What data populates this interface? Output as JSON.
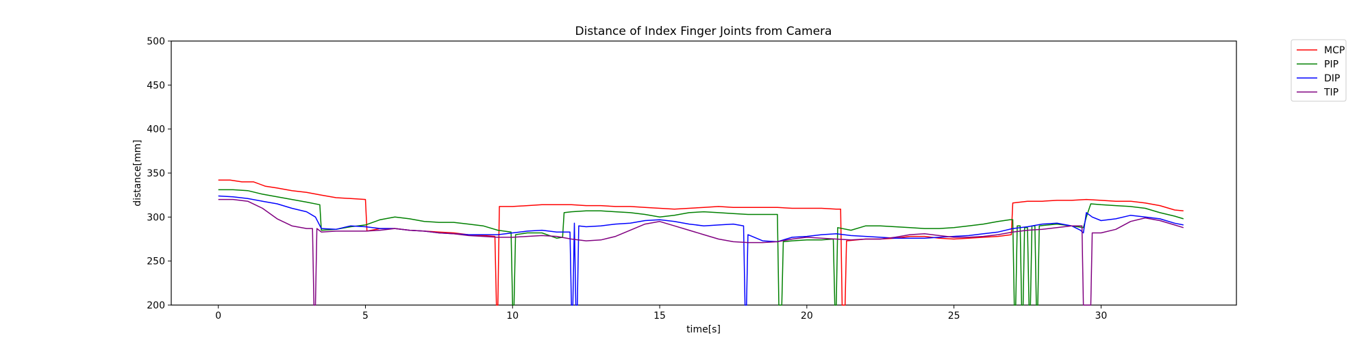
{
  "chart_data": {
    "type": "line",
    "title": "Distance of Index Finger Joints from Camera",
    "xlabel": "time[s]",
    "ylabel": "distance[mm]",
    "xlim": [
      -1.6,
      34.6
    ],
    "ylim": [
      200,
      500
    ],
    "xticks": [
      0,
      5,
      10,
      15,
      20,
      25,
      30
    ],
    "yticks": [
      200,
      250,
      300,
      350,
      400,
      450,
      500
    ],
    "grid": false,
    "legend_position": "outside-top-right",
    "series": [
      {
        "name": "MCP",
        "color": "#ff0000",
        "points": [
          [
            0,
            342
          ],
          [
            0.4,
            342
          ],
          [
            0.8,
            340
          ],
          [
            1.2,
            340
          ],
          [
            1.6,
            335
          ],
          [
            2,
            333
          ],
          [
            2.5,
            330
          ],
          [
            3,
            328
          ],
          [
            3.5,
            325
          ],
          [
            4,
            322
          ],
          [
            4.5,
            321
          ],
          [
            5,
            320
          ],
          [
            5.05,
            284
          ],
          [
            5.5,
            287
          ],
          [
            6,
            287
          ],
          [
            6.5,
            285
          ],
          [
            7,
            284
          ],
          [
            7.5,
            283
          ],
          [
            8,
            282
          ],
          [
            8.5,
            280
          ],
          [
            9,
            279
          ],
          [
            9.4,
            278
          ],
          [
            9.45,
            200
          ],
          [
            9.5,
            200
          ],
          [
            9.55,
            312
          ],
          [
            10,
            312
          ],
          [
            10.5,
            313
          ],
          [
            11,
            314
          ],
          [
            11.5,
            314
          ],
          [
            12,
            314
          ],
          [
            12.5,
            313
          ],
          [
            13,
            313
          ],
          [
            13.5,
            312
          ],
          [
            14,
            312
          ],
          [
            14.5,
            311
          ],
          [
            15,
            310
          ],
          [
            15.5,
            309
          ],
          [
            16,
            310
          ],
          [
            16.5,
            311
          ],
          [
            17,
            312
          ],
          [
            17.5,
            311
          ],
          [
            18,
            311
          ],
          [
            18.5,
            311
          ],
          [
            19,
            311
          ],
          [
            19.5,
            310
          ],
          [
            20,
            310
          ],
          [
            20.5,
            310
          ],
          [
            21,
            309
          ],
          [
            21.15,
            309
          ],
          [
            21.2,
            200
          ],
          [
            21.3,
            200
          ],
          [
            21.35,
            273
          ],
          [
            22,
            275
          ],
          [
            22.5,
            275
          ],
          [
            23,
            276
          ],
          [
            23.5,
            278
          ],
          [
            24,
            278
          ],
          [
            24.5,
            276
          ],
          [
            25,
            275
          ],
          [
            25.5,
            276
          ],
          [
            26,
            277
          ],
          [
            26.5,
            278
          ],
          [
            26.95,
            280
          ],
          [
            27,
            316
          ],
          [
            27.5,
            318
          ],
          [
            28,
            318
          ],
          [
            28.5,
            319
          ],
          [
            29,
            319
          ],
          [
            29.5,
            320
          ],
          [
            30,
            319
          ],
          [
            30.5,
            318
          ],
          [
            31,
            318
          ],
          [
            31.5,
            316
          ],
          [
            32,
            313
          ],
          [
            32.5,
            308
          ],
          [
            32.8,
            307
          ]
        ]
      },
      {
        "name": "PIP",
        "color": "#008000",
        "points": [
          [
            0,
            331
          ],
          [
            0.5,
            331
          ],
          [
            1,
            330
          ],
          [
            1.5,
            326
          ],
          [
            2,
            323
          ],
          [
            2.5,
            320
          ],
          [
            3,
            317
          ],
          [
            3.45,
            314
          ],
          [
            3.5,
            285
          ],
          [
            4,
            286
          ],
          [
            4.5,
            289
          ],
          [
            5,
            291
          ],
          [
            5.5,
            297
          ],
          [
            6,
            300
          ],
          [
            6.5,
            298
          ],
          [
            7,
            295
          ],
          [
            7.5,
            294
          ],
          [
            8,
            294
          ],
          [
            8.5,
            292
          ],
          [
            9,
            290
          ],
          [
            9.5,
            285
          ],
          [
            9.95,
            283
          ],
          [
            10,
            200
          ],
          [
            10.05,
            200
          ],
          [
            10.1,
            280
          ],
          [
            10.5,
            282
          ],
          [
            11,
            282
          ],
          [
            11.5,
            276
          ],
          [
            11.7,
            277
          ],
          [
            11.75,
            305
          ],
          [
            12,
            306
          ],
          [
            12.5,
            307
          ],
          [
            13,
            307
          ],
          [
            13.5,
            306
          ],
          [
            14,
            305
          ],
          [
            14.5,
            303
          ],
          [
            15,
            300
          ],
          [
            15.5,
            302
          ],
          [
            16,
            305
          ],
          [
            16.5,
            306
          ],
          [
            17,
            305
          ],
          [
            17.5,
            304
          ],
          [
            18,
            303
          ],
          [
            18.5,
            303
          ],
          [
            19,
            303
          ],
          [
            19.05,
            200
          ],
          [
            19.15,
            200
          ],
          [
            19.2,
            272
          ],
          [
            19.5,
            273
          ],
          [
            20,
            274
          ],
          [
            20.5,
            274
          ],
          [
            20.9,
            275
          ],
          [
            20.95,
            200
          ],
          [
            21.0,
            200
          ],
          [
            21.05,
            288
          ],
          [
            21.5,
            285
          ],
          [
            22,
            290
          ],
          [
            22.5,
            290
          ],
          [
            23,
            289
          ],
          [
            23.5,
            288
          ],
          [
            24,
            287
          ],
          [
            24.5,
            287
          ],
          [
            25,
            288
          ],
          [
            25.5,
            290
          ],
          [
            26,
            292
          ],
          [
            26.5,
            295
          ],
          [
            26.9,
            297
          ],
          [
            27.0,
            297
          ],
          [
            27.05,
            200
          ],
          [
            27.1,
            200
          ],
          [
            27.15,
            290
          ],
          [
            27.25,
            290
          ],
          [
            27.3,
            200
          ],
          [
            27.35,
            200
          ],
          [
            27.4,
            288
          ],
          [
            27.5,
            288
          ],
          [
            27.55,
            200
          ],
          [
            27.6,
            200
          ],
          [
            27.65,
            290
          ],
          [
            27.75,
            290
          ],
          [
            27.8,
            200
          ],
          [
            27.85,
            200
          ],
          [
            27.9,
            290
          ],
          [
            28.5,
            292
          ],
          [
            29,
            290
          ],
          [
            29.4,
            288
          ],
          [
            29.5,
            300
          ],
          [
            29.65,
            315
          ],
          [
            30,
            314
          ],
          [
            30.5,
            313
          ],
          [
            31,
            312
          ],
          [
            31.5,
            310
          ],
          [
            32,
            305
          ],
          [
            32.5,
            301
          ],
          [
            32.8,
            298
          ]
        ]
      },
      {
        "name": "DIP",
        "color": "#0000ff",
        "points": [
          [
            0,
            324
          ],
          [
            0.5,
            323
          ],
          [
            1,
            321
          ],
          [
            1.5,
            318
          ],
          [
            2,
            315
          ],
          [
            2.5,
            310
          ],
          [
            3,
            306
          ],
          [
            3.3,
            300
          ],
          [
            3.5,
            287
          ],
          [
            4,
            286
          ],
          [
            4.5,
            290
          ],
          [
            5,
            289
          ],
          [
            5.5,
            287
          ],
          [
            6,
            287
          ],
          [
            6.5,
            285
          ],
          [
            7,
            284
          ],
          [
            7.5,
            282
          ],
          [
            8,
            281
          ],
          [
            8.5,
            280
          ],
          [
            9,
            280
          ],
          [
            9.5,
            280
          ],
          [
            10,
            282
          ],
          [
            10.5,
            284
          ],
          [
            11,
            285
          ],
          [
            11.5,
            283
          ],
          [
            11.95,
            283
          ],
          [
            12.0,
            200
          ],
          [
            12.05,
            200
          ],
          [
            12.1,
            293
          ],
          [
            12.15,
            200
          ],
          [
            12.2,
            200
          ],
          [
            12.25,
            290
          ],
          [
            12.5,
            289
          ],
          [
            13,
            290
          ],
          [
            13.5,
            292
          ],
          [
            14,
            293
          ],
          [
            14.5,
            296
          ],
          [
            15,
            297
          ],
          [
            15.5,
            295
          ],
          [
            16,
            292
          ],
          [
            16.5,
            290
          ],
          [
            17,
            291
          ],
          [
            17.5,
            292
          ],
          [
            17.85,
            290
          ],
          [
            17.9,
            200
          ],
          [
            17.95,
            200
          ],
          [
            18.0,
            280
          ],
          [
            18.5,
            273
          ],
          [
            19,
            272
          ],
          [
            19.5,
            277
          ],
          [
            20,
            278
          ],
          [
            20.5,
            280
          ],
          [
            21,
            281
          ],
          [
            21.5,
            279
          ],
          [
            22,
            278
          ],
          [
            22.5,
            277
          ],
          [
            23,
            276
          ],
          [
            23.5,
            276
          ],
          [
            24,
            276
          ],
          [
            24.5,
            277
          ],
          [
            25,
            278
          ],
          [
            25.5,
            279
          ],
          [
            26,
            281
          ],
          [
            26.5,
            283
          ],
          [
            27,
            287
          ],
          [
            27.5,
            289
          ],
          [
            28,
            292
          ],
          [
            28.5,
            293
          ],
          [
            29,
            290
          ],
          [
            29.3,
            285
          ],
          [
            29.4,
            282
          ],
          [
            29.5,
            305
          ],
          [
            29.7,
            300
          ],
          [
            30,
            296
          ],
          [
            30.5,
            298
          ],
          [
            31,
            302
          ],
          [
            31.5,
            300
          ],
          [
            32,
            298
          ],
          [
            32.5,
            293
          ],
          [
            32.8,
            291
          ]
        ]
      },
      {
        "name": "TIP",
        "color": "#800080",
        "points": [
          [
            0,
            320
          ],
          [
            0.5,
            320
          ],
          [
            1,
            318
          ],
          [
            1.5,
            310
          ],
          [
            2,
            298
          ],
          [
            2.5,
            290
          ],
          [
            3,
            287
          ],
          [
            3.2,
            287
          ],
          [
            3.25,
            200
          ],
          [
            3.3,
            200
          ],
          [
            3.35,
            287
          ],
          [
            3.5,
            283
          ],
          [
            4,
            284
          ],
          [
            4.5,
            284
          ],
          [
            5,
            284
          ],
          [
            5.5,
            285
          ],
          [
            6,
            287
          ],
          [
            6.5,
            285
          ],
          [
            7,
            284
          ],
          [
            7.5,
            282
          ],
          [
            8,
            281
          ],
          [
            8.5,
            279
          ],
          [
            9,
            278
          ],
          [
            9.5,
            277
          ],
          [
            10,
            277
          ],
          [
            10.5,
            278
          ],
          [
            11,
            279
          ],
          [
            11.5,
            278
          ],
          [
            12,
            275
          ],
          [
            12.5,
            273
          ],
          [
            13,
            274
          ],
          [
            13.5,
            278
          ],
          [
            14,
            285
          ],
          [
            14.5,
            292
          ],
          [
            15,
            295
          ],
          [
            15.5,
            290
          ],
          [
            16,
            285
          ],
          [
            16.5,
            280
          ],
          [
            17,
            275
          ],
          [
            17.5,
            272
          ],
          [
            18,
            271
          ],
          [
            18.5,
            271
          ],
          [
            19,
            272
          ],
          [
            19.5,
            275
          ],
          [
            20,
            277
          ],
          [
            20.5,
            276
          ],
          [
            21,
            275
          ],
          [
            21.5,
            274
          ],
          [
            22,
            275
          ],
          [
            22.5,
            275
          ],
          [
            23,
            277
          ],
          [
            23.5,
            280
          ],
          [
            24,
            281
          ],
          [
            24.5,
            279
          ],
          [
            25,
            277
          ],
          [
            25.5,
            277
          ],
          [
            26,
            278
          ],
          [
            26.5,
            280
          ],
          [
            27,
            283
          ],
          [
            27.5,
            285
          ],
          [
            28,
            286
          ],
          [
            28.5,
            288
          ],
          [
            29,
            290
          ],
          [
            29.35,
            290
          ],
          [
            29.4,
            200
          ],
          [
            29.65,
            200
          ],
          [
            29.7,
            282
          ],
          [
            30,
            282
          ],
          [
            30.5,
            286
          ],
          [
            31,
            295
          ],
          [
            31.5,
            299
          ],
          [
            32,
            296
          ],
          [
            32.5,
            291
          ],
          [
            32.8,
            288
          ]
        ]
      }
    ]
  }
}
